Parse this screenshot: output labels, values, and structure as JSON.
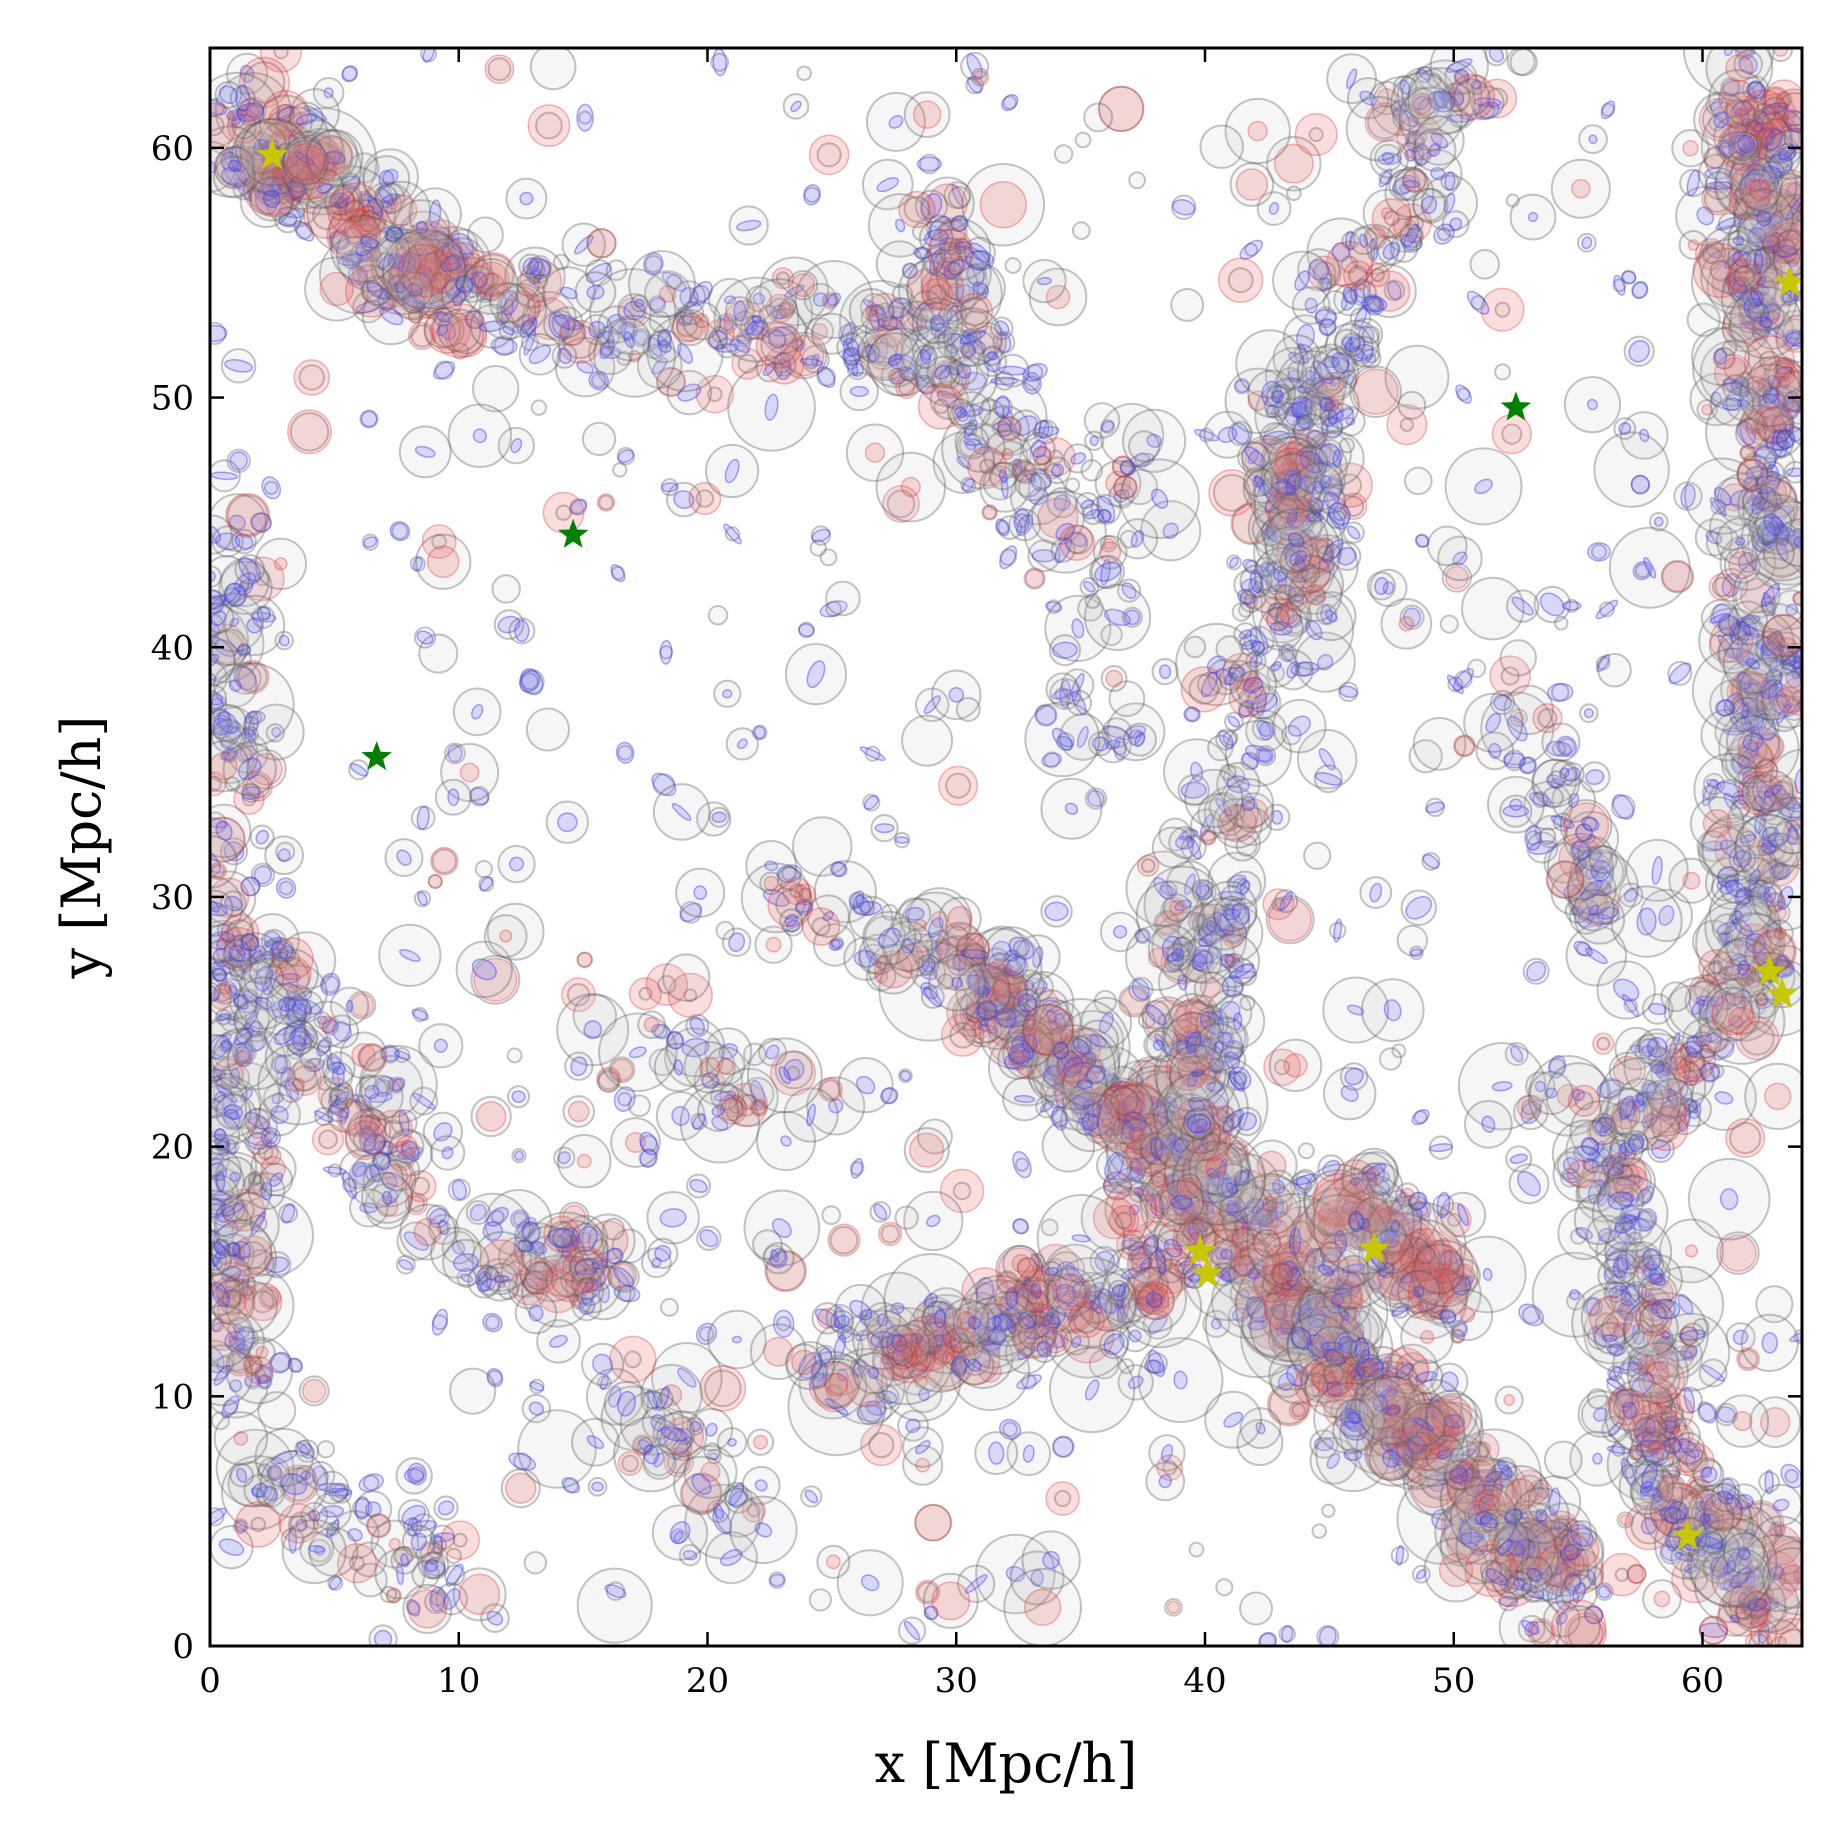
{
  "chart_data": {
    "type": "scatter",
    "title": "",
    "xlabel": "x [Mpc/h]",
    "ylabel": "y [Mpc/h]",
    "xlim": [
      0,
      64
    ],
    "ylim": [
      0,
      64
    ],
    "xticks": [
      0,
      10,
      20,
      30,
      40,
      50,
      60
    ],
    "yticks": [
      0,
      10,
      20,
      30,
      40,
      50,
      60
    ],
    "xtick_labels": [
      "0",
      "10",
      "20",
      "30",
      "40",
      "50",
      "60"
    ],
    "ytick_labels": [
      "0",
      "10",
      "20",
      "30",
      "40",
      "50",
      "60"
    ],
    "grid": false,
    "legend": "none",
    "colors": {
      "halo_outline": "#555555",
      "halo_fill": "#bdbdbd",
      "blue_ellipse": "#3a3aff",
      "red_circle": "#e03030",
      "yellow_star": "#c8c800",
      "green_star": "#008000"
    },
    "markers": {
      "yellow_stars": [
        {
          "x": 2.5,
          "y": 59.7
        },
        {
          "x": 63.5,
          "y": 54.6
        },
        {
          "x": 62.7,
          "y": 27.0
        },
        {
          "x": 63.2,
          "y": 26.1
        },
        {
          "x": 39.8,
          "y": 15.8
        },
        {
          "x": 40.1,
          "y": 14.9
        },
        {
          "x": 46.8,
          "y": 15.9
        },
        {
          "x": 59.4,
          "y": 4.4
        }
      ],
      "green_stars": [
        {
          "x": 52.5,
          "y": 49.6
        },
        {
          "x": 14.6,
          "y": 44.5
        },
        {
          "x": 6.7,
          "y": 35.6
        }
      ]
    },
    "structures": [
      {
        "x0": 1.0,
        "y0": 61.0,
        "x1": 10.0,
        "y1": 54.0,
        "density": 1.0
      },
      {
        "x0": 10.0,
        "y0": 54.0,
        "x1": 30.0,
        "y1": 52.0,
        "density": 0.5
      },
      {
        "x0": 30.0,
        "y0": 52.0,
        "x1": 30.0,
        "y1": 57.0,
        "density": 0.6
      },
      {
        "x0": 30.0,
        "y0": 52.0,
        "x1": 33.0,
        "y1": 45.0,
        "density": 0.6
      },
      {
        "x0": 30.0,
        "y0": 28.0,
        "x1": 40.0,
        "y1": 18.0,
        "density": 0.9
      },
      {
        "x0": 40.0,
        "y0": 18.0,
        "x1": 46.0,
        "y1": 11.0,
        "density": 1.0
      },
      {
        "x0": 46.0,
        "y0": 11.0,
        "x1": 55.0,
        "y1": 2.0,
        "density": 1.0
      },
      {
        "x0": 25.0,
        "y0": 11.0,
        "x1": 38.0,
        "y1": 15.0,
        "density": 0.8
      },
      {
        "x0": 45.0,
        "y0": 18.0,
        "x1": 50.0,
        "y1": 14.0,
        "density": 1.0
      },
      {
        "x0": 59.0,
        "y0": 6.0,
        "x1": 63.0,
        "y1": 1.0,
        "density": 0.9
      },
      {
        "x0": 62.0,
        "y0": 63.0,
        "x1": 63.0,
        "y1": 50.0,
        "density": 0.9
      },
      {
        "x0": 63.0,
        "y0": 50.0,
        "x1": 62.0,
        "y1": 27.0,
        "density": 0.7
      },
      {
        "x0": 62.0,
        "y0": 27.0,
        "x1": 56.0,
        "y1": 20.0,
        "density": 0.7
      },
      {
        "x0": 56.0,
        "y0": 20.0,
        "x1": 59.0,
        "y1": 6.0,
        "density": 0.7
      },
      {
        "x0": 50.0,
        "y0": 63.0,
        "x1": 46.0,
        "y1": 54.0,
        "density": 0.5
      },
      {
        "x0": 46.0,
        "y0": 54.0,
        "x1": 43.0,
        "y1": 43.0,
        "density": 0.5
      },
      {
        "x0": 43.0,
        "y0": 43.0,
        "x1": 40.0,
        "y1": 30.0,
        "density": 0.5
      },
      {
        "x0": 40.0,
        "y0": 30.0,
        "x1": 40.0,
        "y1": 18.0,
        "density": 0.6
      },
      {
        "x0": 0.5,
        "y0": 45.0,
        "x1": 1.0,
        "y1": 10.0,
        "density": 0.5
      },
      {
        "x0": 2.0,
        "y0": 28.0,
        "x1": 8.0,
        "y1": 18.0,
        "density": 0.6
      },
      {
        "x0": 9.0,
        "y0": 16.0,
        "x1": 17.0,
        "y1": 15.0,
        "density": 0.6
      },
      {
        "x0": 2.0,
        "y0": 7.0,
        "x1": 10.0,
        "y1": 2.0,
        "density": 0.5
      },
      {
        "x0": 17.0,
        "y0": 10.0,
        "x1": 22.0,
        "y1": 5.0,
        "density": 0.4
      },
      {
        "x0": 53.0,
        "y0": 36.0,
        "x1": 57.0,
        "y1": 28.0,
        "density": 0.4
      },
      {
        "x0": 36.0,
        "y0": 48.0,
        "x1": 36.0,
        "y1": 36.0,
        "density": 0.3
      },
      {
        "x0": 22.0,
        "y0": 30.0,
        "x1": 30.0,
        "y1": 28.0,
        "density": 0.3
      },
      {
        "x0": 18.0,
        "y0": 24.0,
        "x1": 24.0,
        "y1": 21.0,
        "density": 0.3
      },
      {
        "x0": 44.0,
        "y0": 52.0,
        "x1": 44.0,
        "y1": 41.0,
        "density": 0.5
      }
    ]
  }
}
